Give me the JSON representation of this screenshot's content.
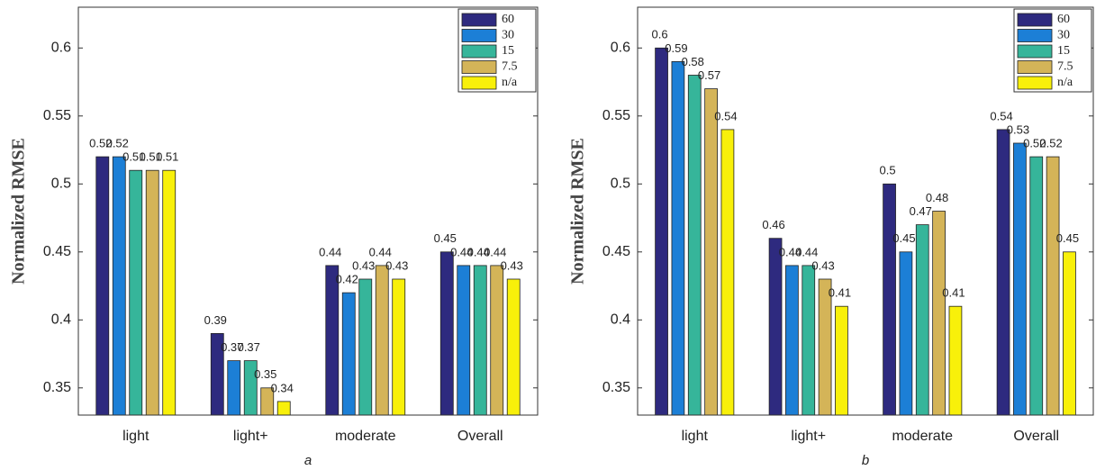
{
  "chart_data": [
    {
      "type": "bar",
      "caption": "a",
      "y_label": "Normalized RMSE",
      "categories": [
        "light",
        "light+",
        "moderate",
        "Overall"
      ],
      "series": [
        {
          "name": "60",
          "color": "#2e2a7f",
          "values": [
            0.52,
            0.39,
            0.44,
            0.45
          ]
        },
        {
          "name": "30",
          "color": "#1c7fd6",
          "values": [
            0.52,
            0.37,
            0.42,
            0.44
          ]
        },
        {
          "name": "15",
          "color": "#36b59a",
          "values": [
            0.51,
            0.37,
            0.43,
            0.44
          ]
        },
        {
          "name": "7.5",
          "color": "#d4b458",
          "values": [
            0.51,
            0.35,
            0.44,
            0.44
          ]
        },
        {
          "name": "n/a",
          "color": "#f8f00a",
          "values": [
            0.51,
            0.34,
            0.43,
            0.43
          ]
        }
      ],
      "ylim": [
        0.33,
        0.63
      ],
      "yticks": [
        0.35,
        0.4,
        0.45,
        0.5,
        0.55,
        0.6
      ],
      "legend": "upper-right"
    },
    {
      "type": "bar",
      "caption": "b",
      "y_label": "Normalized RMSE",
      "categories": [
        "light",
        "light+",
        "moderate",
        "Overall"
      ],
      "series": [
        {
          "name": "60",
          "color": "#2e2a7f",
          "values": [
            0.6,
            0.46,
            0.5,
            0.54
          ]
        },
        {
          "name": "30",
          "color": "#1c7fd6",
          "values": [
            0.59,
            0.44,
            0.45,
            0.53
          ]
        },
        {
          "name": "15",
          "color": "#36b59a",
          "values": [
            0.58,
            0.44,
            0.47,
            0.52
          ]
        },
        {
          "name": "7.5",
          "color": "#d4b458",
          "values": [
            0.57,
            0.43,
            0.48,
            0.52
          ]
        },
        {
          "name": "n/a",
          "color": "#f8f00a",
          "values": [
            0.54,
            0.41,
            0.41,
            0.45
          ]
        }
      ],
      "ylim": [
        0.33,
        0.63
      ],
      "yticks": [
        0.35,
        0.4,
        0.45,
        0.5,
        0.55,
        0.6
      ],
      "legend": "upper-right"
    }
  ]
}
